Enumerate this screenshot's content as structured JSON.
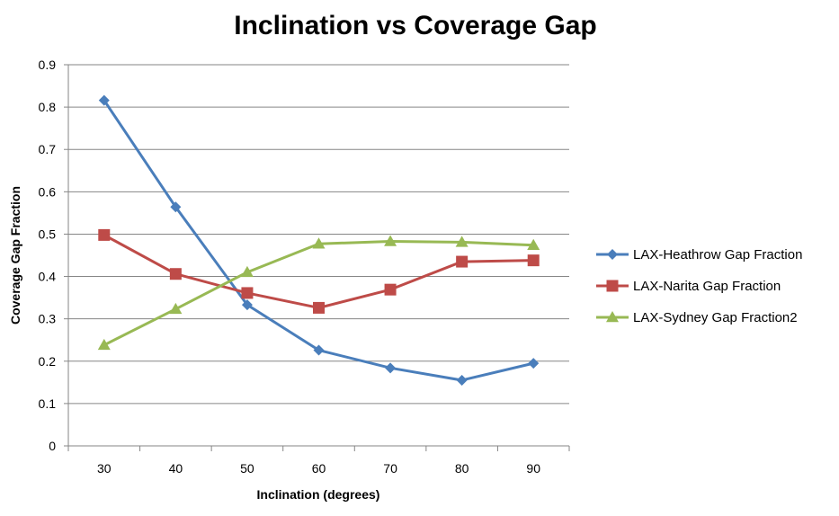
{
  "colors": {
    "heathrow": "#4a7ebb",
    "narita": "#be4b48",
    "sydney": "#98b954",
    "gridline": "#868686",
    "axis": "#868686"
  },
  "chart_data": {
    "type": "line",
    "title": "Inclination vs Coverage Gap",
    "xlabel": "Inclination (degrees)",
    "ylabel": "Coverage Gap Fraction",
    "categories": [
      "30",
      "40",
      "50",
      "60",
      "70",
      "80",
      "90"
    ],
    "ylim": [
      0,
      0.9
    ],
    "yticks": [
      "0",
      "0.1",
      "0.2",
      "0.3",
      "0.4",
      "0.5",
      "0.6",
      "0.7",
      "0.8",
      "0.9"
    ],
    "grid": "horizontal",
    "legend_position": "right",
    "series": [
      {
        "key": "heathrow",
        "name": "LAX-Heathrow Gap Fraction",
        "marker": "diamond",
        "values": [
          0.816,
          0.564,
          0.333,
          0.226,
          0.184,
          0.155,
          0.195
        ]
      },
      {
        "key": "narita",
        "name": "LAX-Narita Gap Fraction",
        "marker": "square",
        "values": [
          0.498,
          0.406,
          0.361,
          0.326,
          0.369,
          0.435,
          0.438
        ]
      },
      {
        "key": "sydney",
        "name": "LAX-Sydney Gap Fraction2",
        "marker": "triangle",
        "values": [
          0.238,
          0.323,
          0.41,
          0.477,
          0.483,
          0.481,
          0.474
        ]
      }
    ]
  }
}
